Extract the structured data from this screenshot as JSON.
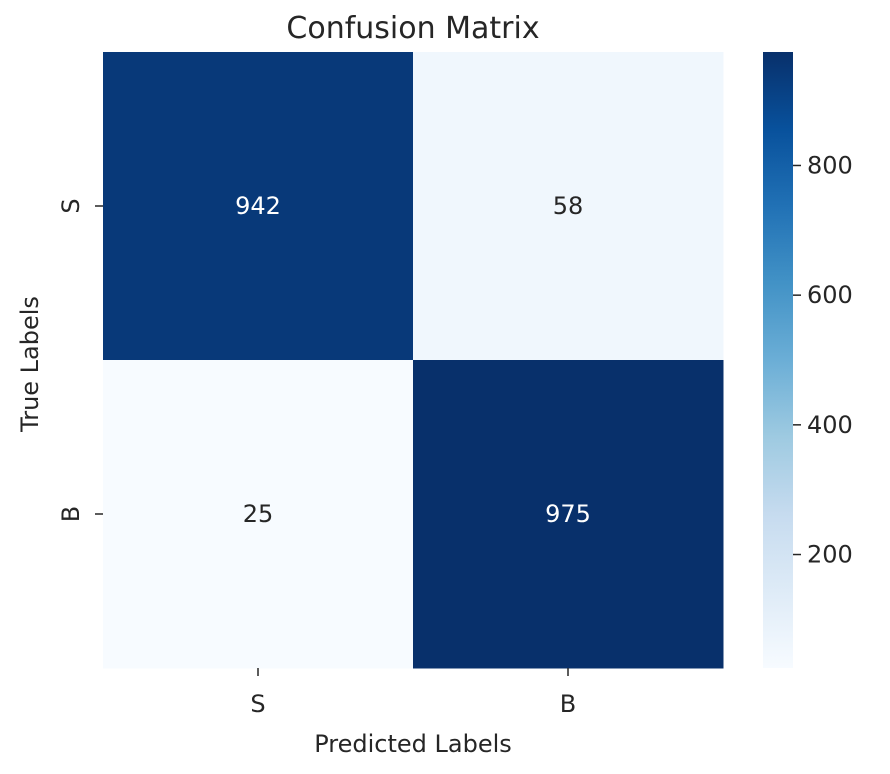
{
  "chart_data": {
    "type": "heatmap",
    "title": "Confusion Matrix",
    "xlabel": "Predicted Labels",
    "ylabel": "True Labels",
    "x_categories": [
      "S",
      "B"
    ],
    "y_categories": [
      "S",
      "B"
    ],
    "values": [
      [
        942,
        58
      ],
      [
        25,
        975
      ]
    ],
    "colormap": "Blues",
    "colorbar": {
      "range": [
        25,
        975
      ],
      "ticks": [
        200,
        400,
        600,
        800
      ],
      "tick_labels": [
        "200",
        "400",
        "600",
        "800"
      ]
    },
    "colors": {
      "low": "#f7fbff",
      "high": "#08306b",
      "text_on_dark": "#ffffff",
      "text_on_light": "#262626"
    }
  }
}
